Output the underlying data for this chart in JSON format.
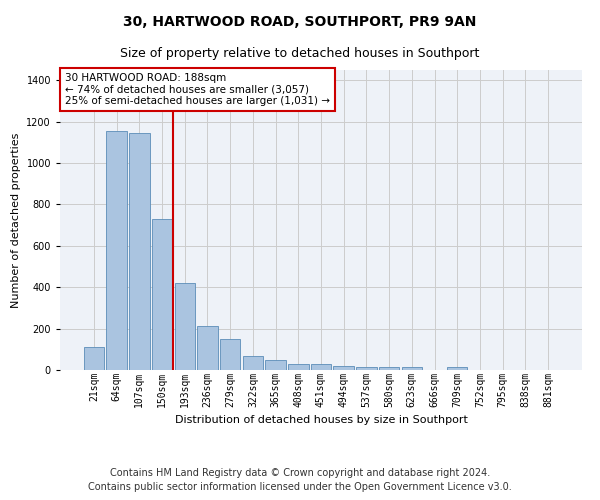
{
  "title": "30, HARTWOOD ROAD, SOUTHPORT, PR9 9AN",
  "subtitle": "Size of property relative to detached houses in Southport",
  "xlabel": "Distribution of detached houses by size in Southport",
  "ylabel": "Number of detached properties",
  "categories": [
    "21sqm",
    "64sqm",
    "107sqm",
    "150sqm",
    "193sqm",
    "236sqm",
    "279sqm",
    "322sqm",
    "365sqm",
    "408sqm",
    "451sqm",
    "494sqm",
    "537sqm",
    "580sqm",
    "623sqm",
    "666sqm",
    "709sqm",
    "752sqm",
    "795sqm",
    "838sqm",
    "881sqm"
  ],
  "values": [
    110,
    1155,
    1145,
    730,
    420,
    215,
    150,
    70,
    48,
    30,
    30,
    20,
    15,
    15,
    15,
    0,
    15,
    0,
    0,
    0,
    0
  ],
  "bar_color": "#aac4e0",
  "bar_edgecolor": "#5b8db8",
  "annotation_text_line1": "30 HARTWOOD ROAD: 188sqm",
  "annotation_text_line2": "← 74% of detached houses are smaller (3,057)",
  "annotation_text_line3": "25% of semi-detached houses are larger (1,031) →",
  "annotation_box_color": "#ffffff",
  "annotation_box_edgecolor": "#cc0000",
  "vline_color": "#cc0000",
  "vline_x_index": 4,
  "ylim": [
    0,
    1450
  ],
  "yticks": [
    0,
    200,
    400,
    600,
    800,
    1000,
    1200,
    1400
  ],
  "grid_color": "#cccccc",
  "background_color": "#eef2f8",
  "footer_line1": "Contains HM Land Registry data © Crown copyright and database right 2024.",
  "footer_line2": "Contains public sector information licensed under the Open Government Licence v3.0.",
  "title_fontsize": 10,
  "subtitle_fontsize": 9,
  "axis_label_fontsize": 8,
  "tick_fontsize": 7,
  "footer_fontsize": 7
}
